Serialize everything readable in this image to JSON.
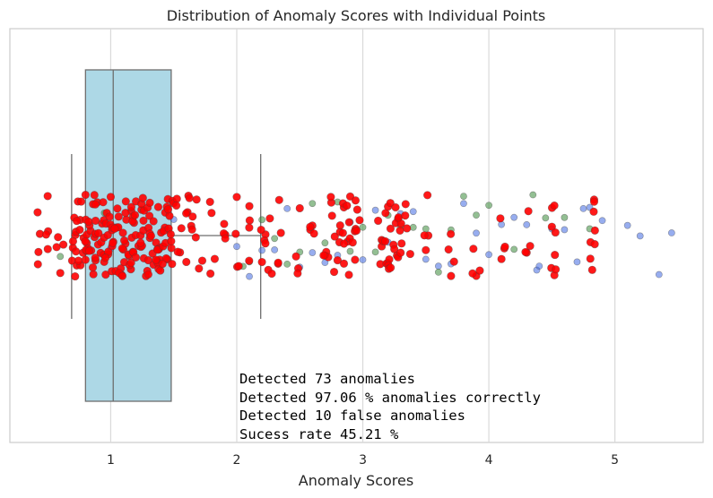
{
  "chart_data": {
    "type": "scatter",
    "title": "Distribution of Anomaly Scores with Individual Points",
    "xlabel": "Anomaly Scores",
    "ylabel": "",
    "xlim": [
      0.2,
      5.7
    ],
    "x_ticks": [
      1,
      2,
      3,
      4,
      5
    ],
    "grid": "vertical",
    "boxplot": {
      "whisker_low": 0.69,
      "q1": 0.8,
      "median": 1.02,
      "q3": 1.48,
      "whisker_high": 2.19,
      "fill": "#add8e6"
    },
    "series": [
      {
        "color": "#ff0000",
        "values": [
          0.42,
          0.5,
          0.6,
          0.7,
          0.72,
          0.74,
          0.76,
          0.78,
          0.8,
          0.82,
          0.84,
          0.86,
          0.88,
          0.9,
          0.92,
          0.94,
          0.96,
          0.98,
          1.0,
          1.02,
          1.04,
          1.06,
          1.08,
          1.1,
          1.12,
          1.14,
          1.16,
          1.18,
          1.2,
          1.22,
          1.24,
          1.26,
          1.28,
          1.3,
          1.32,
          1.34,
          1.36,
          1.38,
          1.4,
          1.42,
          1.44,
          1.46,
          1.48,
          1.5,
          1.55,
          1.6,
          1.65,
          1.7,
          1.8,
          1.9,
          2.0,
          2.1,
          2.2,
          2.25,
          2.35,
          2.5,
          2.6,
          2.7,
          2.75,
          2.8,
          2.85,
          2.88,
          2.9,
          2.92,
          2.95,
          3.15,
          3.18,
          3.2,
          3.22,
          3.25,
          3.28,
          3.3,
          3.35,
          3.5,
          3.7,
          3.9,
          4.1,
          4.3,
          4.5,
          4.52,
          4.82,
          4.84
        ]
      },
      {
        "color": "#4169e1",
        "values": [
          1.0,
          1.5,
          2.0,
          2.1,
          2.2,
          2.3,
          2.4,
          2.5,
          2.6,
          2.7,
          2.8,
          2.9,
          3.0,
          3.1,
          3.2,
          3.3,
          3.4,
          3.5,
          3.6,
          3.7,
          3.8,
          3.9,
          4.0,
          4.1,
          4.2,
          4.3,
          4.38,
          4.4,
          4.5,
          4.6,
          4.7,
          4.75,
          4.8,
          4.9,
          5.1,
          5.2,
          5.35,
          5.45
        ]
      },
      {
        "color": "#3a8a3a",
        "values": [
          0.6,
          0.95,
          1.45,
          2.05,
          2.1,
          2.2,
          2.3,
          2.4,
          2.5,
          2.6,
          2.7,
          2.8,
          2.9,
          3.0,
          3.1,
          3.2,
          3.3,
          3.4,
          3.5,
          3.6,
          3.7,
          3.8,
          3.9,
          4.0,
          4.2,
          4.35,
          4.45,
          4.6,
          4.8
        ]
      }
    ],
    "annotations": [
      "Detected 73 anomalies",
      "Detected 97.06 % anomalies correctly",
      "Detected 10 false anomalies",
      "Sucess rate 45.21 %"
    ]
  }
}
